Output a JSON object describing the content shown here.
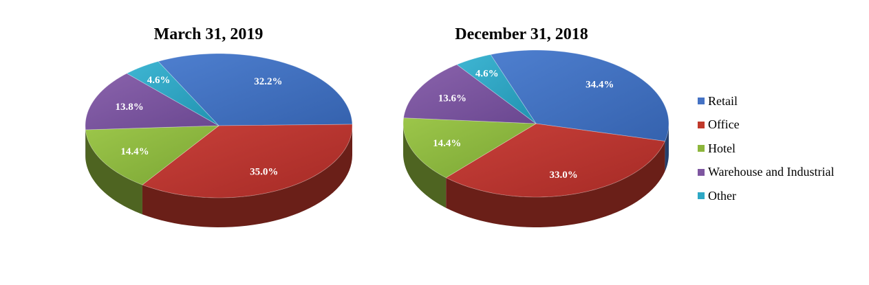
{
  "chart_data": [
    {
      "type": "pie",
      "title": "March 31, 2019",
      "categories": [
        "Retail",
        "Office",
        "Hotel",
        "Warehouse and Industrial",
        "Other"
      ],
      "values": [
        32.2,
        35.0,
        14.4,
        13.8,
        4.6
      ],
      "labels": [
        "32.2%",
        "35.0%",
        "14.4%",
        "13.8%",
        "4.6%"
      ],
      "unit": "%",
      "style": "3d"
    },
    {
      "type": "pie",
      "title": "December 31, 2018",
      "categories": [
        "Retail",
        "Office",
        "Hotel",
        "Warehouse and Industrial",
        "Other"
      ],
      "values": [
        34.4,
        33.0,
        14.4,
        13.6,
        4.6
      ],
      "labels": [
        "34.4%",
        "33.0%",
        "14.4%",
        "13.6%",
        "4.6%"
      ],
      "unit": "%",
      "style": "3d"
    }
  ],
  "legend": {
    "placement": "right",
    "items": [
      {
        "label": "Retail",
        "color": "#4472C4"
      },
      {
        "label": "Office",
        "color": "#C0392B"
      },
      {
        "label": "Hotel",
        "color": "#8DB63C"
      },
      {
        "label": "Warehouse and Industrial",
        "color": "#7E56A0"
      },
      {
        "label": "Other",
        "color": "#2EA8C5"
      }
    ]
  }
}
